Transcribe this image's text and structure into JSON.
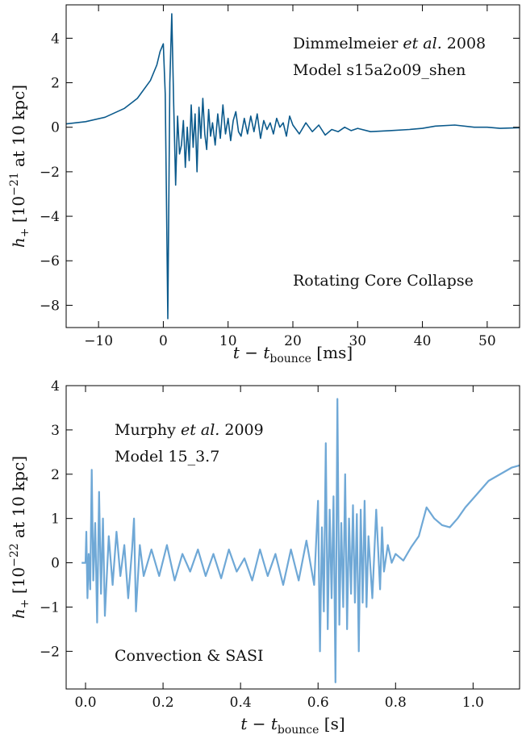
{
  "chart_data": [
    {
      "type": "line",
      "color": "#0b5a8c",
      "xlim": [
        -15,
        55
      ],
      "ylim": [
        -9,
        5.5
      ],
      "xticks": [
        -10,
        0,
        10,
        20,
        30,
        40,
        50
      ],
      "yticks": [
        4,
        2,
        0,
        -2,
        -4,
        -6,
        -8
      ],
      "xticklabels": [
        "−10",
        "0",
        "10",
        "20",
        "30",
        "40",
        "50"
      ],
      "yticklabels": [
        "4",
        "2",
        "0",
        "−2",
        "−4",
        "−6",
        "−8"
      ],
      "xlabel": {
        "main": "t − t",
        "sub": "bounce",
        "unit": " [ms]"
      },
      "ylabel": {
        "main": "h",
        "sub": "+",
        "unit": " [10",
        "sup": "−21",
        "rest": " at 10 kpc]"
      },
      "annotations": {
        "line1_name": "Dimmelmeier ",
        "line1_etal": "et al.",
        "line1_year": " 2008",
        "line2": "Model s15a2o09_shen",
        "line3": "Rotating Core Collapse"
      },
      "series": [
        {
          "x": [
            -15,
            -12,
            -9,
            -6,
            -4,
            -2,
            -1,
            -0.5,
            0,
            0.3,
            0.5,
            0.7,
            1.0,
            1.3,
            1.6,
            1.9,
            2.2,
            2.5,
            2.8,
            3.1,
            3.4,
            3.7,
            4.0,
            4.3,
            4.6,
            4.9,
            5.2,
            5.5,
            5.8,
            6.1,
            6.4,
            6.7,
            7.0,
            7.3,
            7.6,
            8.0,
            8.4,
            8.8,
            9.2,
            9.6,
            10.0,
            10.4,
            10.8,
            11.2,
            11.6,
            12.0,
            12.5,
            13.0,
            13.5,
            14.0,
            14.5,
            15.0,
            15.5,
            16.0,
            16.5,
            17.0,
            17.5,
            18.0,
            18.5,
            19.0,
            19.5,
            20.0,
            21,
            22,
            23,
            24,
            25,
            26,
            27,
            28,
            29,
            30,
            32,
            35,
            38,
            40,
            42,
            45,
            48,
            50,
            52,
            55
          ],
          "y": [
            0.15,
            0.25,
            0.45,
            0.85,
            1.3,
            2.1,
            2.8,
            3.4,
            3.75,
            1.5,
            -3.5,
            -8.6,
            2.0,
            5.1,
            1.0,
            -2.6,
            0.5,
            -1.2,
            -0.8,
            0.3,
            -1.8,
            0.0,
            -1.5,
            1.0,
            -0.9,
            0.6,
            -2.0,
            0.9,
            -0.5,
            1.3,
            -0.3,
            -1.0,
            0.8,
            -0.4,
            0.2,
            -0.8,
            0.6,
            -0.5,
            1.0,
            -0.3,
            0.4,
            -0.6,
            0.3,
            0.7,
            -0.2,
            -0.4,
            0.4,
            -0.3,
            0.5,
            -0.2,
            0.6,
            -0.5,
            0.3,
            -0.1,
            0.2,
            -0.3,
            0.4,
            0.0,
            0.2,
            -0.4,
            0.5,
            0.1,
            -0.3,
            0.2,
            -0.2,
            0.1,
            -0.35,
            -0.1,
            -0.2,
            0.0,
            -0.15,
            -0.05,
            -0.2,
            -0.15,
            -0.1,
            -0.05,
            0.05,
            0.1,
            0.0,
            0.0,
            -0.05,
            -0.02
          ]
        }
      ]
    },
    {
      "type": "line",
      "color": "#6fa8d6",
      "xlim": [
        -0.05,
        1.12
      ],
      "ylim": [
        -2.85,
        4.0
      ],
      "xticks": [
        0.0,
        0.2,
        0.4,
        0.6,
        0.8,
        1.0
      ],
      "yticks": [
        4,
        3,
        2,
        1,
        0,
        -1,
        -2
      ],
      "xticklabels": [
        "0.0",
        "0.2",
        "0.4",
        "0.6",
        "0.8",
        "1.0"
      ],
      "yticklabels": [
        "4",
        "3",
        "2",
        "1",
        "0",
        "−1",
        "−2"
      ],
      "xlabel": {
        "main": "t − t",
        "sub": "bounce",
        "unit": " [s]"
      },
      "ylabel": {
        "main": "h",
        "sub": "+",
        "unit": " [10",
        "sup": "−22",
        "rest": " at 10 kpc]"
      },
      "annotations": {
        "line1_name": "Murphy ",
        "line1_etal": "et al.",
        "line1_year": " 2009",
        "line2": "Model 15_3.7",
        "line3": "Convection & SASI"
      },
      "series": [
        {
          "x": [
            -0.01,
            0.0,
            0.002,
            0.005,
            0.008,
            0.012,
            0.016,
            0.02,
            0.025,
            0.03,
            0.035,
            0.04,
            0.045,
            0.05,
            0.06,
            0.07,
            0.08,
            0.09,
            0.1,
            0.11,
            0.12,
            0.125,
            0.13,
            0.14,
            0.15,
            0.17,
            0.19,
            0.21,
            0.23,
            0.25,
            0.27,
            0.29,
            0.31,
            0.33,
            0.35,
            0.37,
            0.39,
            0.41,
            0.43,
            0.45,
            0.47,
            0.49,
            0.51,
            0.53,
            0.55,
            0.57,
            0.59,
            0.6,
            0.605,
            0.61,
            0.615,
            0.62,
            0.625,
            0.63,
            0.635,
            0.64,
            0.645,
            0.65,
            0.655,
            0.66,
            0.665,
            0.67,
            0.675,
            0.68,
            0.685,
            0.69,
            0.695,
            0.7,
            0.705,
            0.71,
            0.715,
            0.72,
            0.725,
            0.73,
            0.74,
            0.75,
            0.76,
            0.765,
            0.77,
            0.78,
            0.79,
            0.8,
            0.82,
            0.84,
            0.86,
            0.88,
            0.9,
            0.92,
            0.94,
            0.96,
            0.98,
            1.0,
            1.02,
            1.04,
            1.06,
            1.08,
            1.1,
            1.12
          ],
          "y": [
            0.0,
            0.0,
            0.7,
            -0.8,
            0.2,
            -0.6,
            2.1,
            -0.4,
            0.9,
            -1.35,
            1.6,
            -0.7,
            1.0,
            -1.2,
            0.6,
            -0.5,
            0.7,
            -0.3,
            0.4,
            -0.8,
            0.3,
            1.0,
            -1.1,
            0.4,
            -0.3,
            0.3,
            -0.3,
            0.4,
            -0.4,
            0.2,
            -0.2,
            0.3,
            -0.3,
            0.2,
            -0.35,
            0.3,
            -0.2,
            0.1,
            -0.4,
            0.3,
            -0.3,
            0.2,
            -0.5,
            0.3,
            -0.4,
            0.5,
            -0.5,
            1.4,
            -2.0,
            0.8,
            -1.1,
            2.7,
            -1.5,
            1.2,
            -0.8,
            1.5,
            -2.7,
            3.7,
            -1.4,
            0.9,
            -1.0,
            2.0,
            -1.5,
            1.0,
            -0.7,
            1.3,
            -0.9,
            1.1,
            -2.0,
            1.2,
            -0.9,
            1.4,
            -1.0,
            0.6,
            -0.8,
            1.2,
            -0.6,
            0.8,
            -0.2,
            0.4,
            0.0,
            0.2,
            0.05,
            0.35,
            0.6,
            1.25,
            1.0,
            0.85,
            0.8,
            1.0,
            1.25,
            1.45,
            1.65,
            1.85,
            1.95,
            2.05,
            2.15,
            2.2
          ]
        }
      ]
    }
  ]
}
